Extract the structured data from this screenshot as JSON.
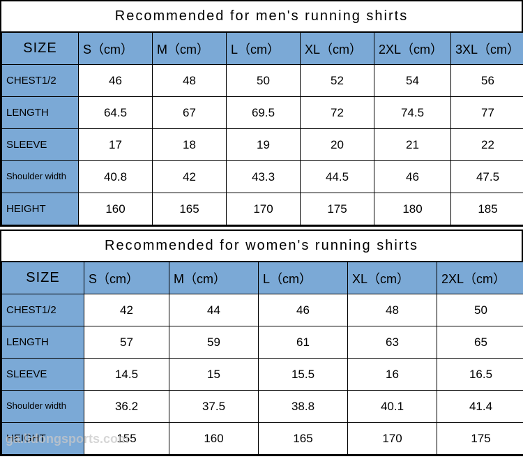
{
  "colors": {
    "header_bg": "#7ba9d6",
    "cell_bg": "#ffffff",
    "border": "#000000",
    "text": "#000000"
  },
  "watermark": "ga.lidongsports.com",
  "tables": [
    {
      "title": "Recommended   for   men's   running   shirts",
      "size_label": "SIZE",
      "columns": [
        "S（cm）",
        "M（cm）",
        "L（cm）",
        "XL（cm）",
        "2XL（cm）",
        "3XL（cm）"
      ],
      "col_widths": [
        "110px",
        "106px",
        "106px",
        "106px",
        "106px",
        "110px",
        "106px"
      ],
      "rows": [
        {
          "label": "CHEST1/2",
          "small": false,
          "values": [
            "46",
            "48",
            "50",
            "52",
            "54",
            "56"
          ]
        },
        {
          "label": "LENGTH",
          "small": false,
          "values": [
            "64.5",
            "67",
            "69.5",
            "72",
            "74.5",
            "77"
          ]
        },
        {
          "label": "SLEEVE",
          "small": false,
          "values": [
            "17",
            "18",
            "19",
            "20",
            "21",
            "22"
          ]
        },
        {
          "label": "Shoulder width",
          "small": true,
          "values": [
            "40.8",
            "42",
            "43.3",
            "44.5",
            "46",
            "47.5"
          ]
        },
        {
          "label": "HEIGHT",
          "small": false,
          "values": [
            "160",
            "165",
            "170",
            "175",
            "180",
            "185"
          ]
        }
      ]
    },
    {
      "title": "Recommended   for   women's   running   shirts",
      "size_label": "SIZE",
      "columns": [
        "S（cm）",
        "M（cm）",
        "L（cm）",
        "XL（cm）",
        "2XL（cm）"
      ],
      "col_widths": [
        "118px",
        "122px",
        "128px",
        "128px",
        "128px",
        "126px"
      ],
      "rows": [
        {
          "label": "CHEST1/2",
          "small": false,
          "values": [
            "42",
            "44",
            "46",
            "48",
            "50"
          ]
        },
        {
          "label": "LENGTH",
          "small": false,
          "values": [
            "57",
            "59",
            "61",
            "63",
            "65"
          ]
        },
        {
          "label": "SLEEVE",
          "small": false,
          "values": [
            "14.5",
            "15",
            "15.5",
            "16",
            "16.5"
          ]
        },
        {
          "label": "Shoulder width",
          "small": true,
          "values": [
            "36.2",
            "37.5",
            "38.8",
            "40.1",
            "41.4"
          ]
        },
        {
          "label": "HEIGHT",
          "small": false,
          "values": [
            "155",
            "160",
            "165",
            "170",
            "175"
          ]
        }
      ]
    }
  ]
}
